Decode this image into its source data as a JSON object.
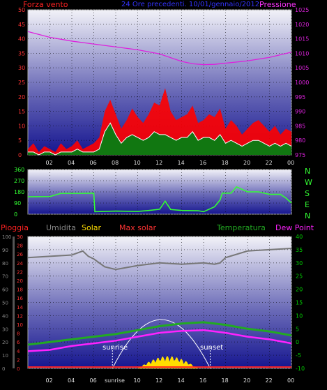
{
  "header": {
    "left_label": "Forza vento",
    "subtitle": "24 Ore precedenti. 10/01/gennaio/2012",
    "right_label": "Pressione"
  },
  "compass": [
    "N",
    "W",
    "S",
    "E",
    "N"
  ],
  "legend": {
    "rain": "Pioggia",
    "humidity": "Umidita",
    "solar": "Solar",
    "max_solar": "Max solar",
    "temperature": "Temperatura",
    "dewpoint": "Dew Point",
    "sunrise": "sunrise",
    "sunset": "sunset"
  },
  "colors": {
    "wind": "#ff1a1a",
    "gust_fill": "#ff0000",
    "avg_wind": "#ffffff",
    "pressure": "#dd22dd",
    "direction": "#33ff33",
    "humidity": "#777777",
    "temperature": "#22aa22",
    "dewpoint": "#ff22ff",
    "solar": "#ffdd00",
    "max_solar": "#ffffff",
    "rain": "#ff2222",
    "left_axis_red": "#ff3333",
    "right_axis_magenta": "#dd22dd",
    "direction_axis": "#33ff33",
    "temp_axis": "#00cc00"
  },
  "chart_data": [
    {
      "type": "line",
      "panel": "wind_pressure",
      "x_ticks": [
        "02",
        "04",
        "06",
        "08",
        "10",
        "12",
        "14",
        "16",
        "18",
        "20",
        "22",
        "00"
      ],
      "left_axis": {
        "label": "Forza vento",
        "ticks": [
          0,
          5,
          10,
          15,
          20,
          25,
          30,
          35,
          40,
          45,
          50
        ],
        "ylim": [
          0,
          50
        ]
      },
      "right_axis": {
        "label": "Pressione",
        "ticks": [
          975,
          980,
          985,
          990,
          995,
          1000,
          1005,
          1010,
          1015,
          1020,
          1025
        ],
        "ylim": [
          975,
          1025
        ]
      },
      "series": [
        {
          "name": "Pressione",
          "axis": "right",
          "x": [
            0,
            2,
            4,
            6,
            8,
            10,
            12,
            14,
            15,
            16,
            17,
            18,
            20,
            22,
            24
          ],
          "values": [
            1017.5,
            1015.5,
            1014.2,
            1013.2,
            1012.2,
            1011.2,
            1009.8,
            1007.2,
            1006.4,
            1006.1,
            1006.2,
            1006.6,
            1007.4,
            1008.6,
            1010.4
          ]
        }
      ],
      "wind_envelope": {
        "x": [
          0,
          0.5,
          1,
          1.5,
          2,
          2.5,
          3,
          3.5,
          4,
          4.5,
          5,
          5.5,
          6,
          6.5,
          7,
          7.5,
          8,
          8.5,
          9,
          9.5,
          10,
          10.5,
          11,
          11.5,
          12,
          12.5,
          13,
          13.5,
          14,
          14.5,
          15,
          15.5,
          16,
          16.5,
          17,
          17.5,
          18,
          18.5,
          19,
          19.5,
          20,
          20.5,
          21,
          21.5,
          22,
          22.5,
          23,
          23.5,
          24
        ],
        "gust": [
          2,
          4,
          1,
          3,
          2,
          1,
          4,
          2,
          3,
          5,
          2,
          3,
          4,
          6,
          15,
          19,
          14,
          9,
          12,
          16,
          13,
          11,
          14,
          18,
          17,
          23,
          15,
          12,
          13,
          14,
          17,
          11,
          12,
          14,
          13,
          16,
          9,
          12,
          10,
          7,
          9,
          11,
          12,
          10,
          8,
          10,
          7,
          9,
          8
        ],
        "avg": [
          1,
          1,
          0,
          1,
          1,
          0,
          1,
          1,
          1,
          2,
          1,
          1,
          1,
          2,
          8,
          11,
          7,
          4,
          6,
          7,
          6,
          5,
          6,
          8,
          7,
          7,
          6,
          5,
          6,
          6,
          8,
          5,
          6,
          6,
          5,
          7,
          4,
          5,
          4,
          3,
          4,
          5,
          5,
          4,
          3,
          4,
          3,
          4,
          3
        ]
      }
    },
    {
      "type": "line",
      "panel": "direction",
      "left_axis": {
        "ticks": [
          0,
          90,
          180,
          270,
          360
        ],
        "ylim": [
          0,
          360
        ]
      },
      "series": [
        {
          "name": "direction",
          "x": [
            0,
            2,
            3,
            5,
            6,
            6.1,
            8,
            10,
            11,
            12,
            12.5,
            13,
            14,
            15.5,
            16,
            17,
            17.5,
            17.7,
            18.5,
            19,
            20,
            21,
            22,
            23,
            23.5,
            24
          ],
          "values": [
            140,
            142,
            168,
            168,
            170,
            20,
            25,
            22,
            30,
            40,
            105,
            38,
            30,
            28,
            20,
            60,
            115,
            170,
            170,
            220,
            180,
            180,
            160,
            160,
            130,
            90
          ]
        }
      ]
    },
    {
      "type": "line",
      "panel": "temperature_rain",
      "left_axis_outer": {
        "ticks": [
          0,
          10,
          20,
          30,
          40,
          50,
          60,
          70,
          80,
          90,
          100
        ],
        "ylim": [
          0,
          100
        ]
      },
      "left_axis_inner": {
        "ticks": [
          0,
          2,
          4,
          6,
          8,
          10,
          12,
          14,
          16,
          18,
          20,
          22,
          24,
          26,
          28,
          30
        ],
        "ylim": [
          0,
          30
        ]
      },
      "right_axis": {
        "ticks": [
          -10,
          -5,
          0,
          5,
          10,
          15,
          20,
          25,
          30,
          35,
          40
        ],
        "ylim": [
          -10,
          40
        ]
      },
      "x_tick_labels": [
        "02",
        "04",
        "06",
        "sunrise",
        "10",
        "12",
        "14",
        "16",
        "18",
        "20",
        "22",
        "00"
      ],
      "series": [
        {
          "name": "Umidita",
          "axis": "outer",
          "x": [
            0,
            2,
            4,
            5,
            5.5,
            6,
            7,
            8,
            10,
            12,
            14,
            16,
            17,
            17.5,
            18,
            20,
            22,
            24
          ],
          "values": [
            84,
            85,
            86,
            89,
            85,
            83,
            77,
            75,
            78,
            80,
            79,
            80,
            79,
            80,
            84,
            89,
            90,
            91
          ]
        },
        {
          "name": "Temperatura",
          "axis": "right",
          "x": [
            0,
            2,
            4,
            6,
            8,
            10,
            12,
            14,
            16,
            18,
            20,
            22,
            24
          ],
          "values": [
            -1,
            0,
            1,
            2,
            3,
            4.5,
            6,
            7,
            7.5,
            6.5,
            5,
            4,
            2.5
          ]
        },
        {
          "name": "Dew Point",
          "axis": "right",
          "x": [
            0,
            2,
            4,
            6,
            8,
            10,
            12,
            14,
            16,
            18,
            20,
            22,
            24
          ],
          "values": [
            -3.5,
            -3,
            -1.5,
            -0.5,
            0.5,
            2,
            3.5,
            4.2,
            4.5,
            3.5,
            2,
            1,
            -0.5
          ]
        },
        {
          "name": "Pioggia",
          "axis": "outer",
          "x": [
            0,
            24
          ],
          "values": [
            1,
            1
          ]
        }
      ],
      "sun": {
        "sunrise_hour": 7.7,
        "sunset_hour": 16.6
      }
    }
  ]
}
